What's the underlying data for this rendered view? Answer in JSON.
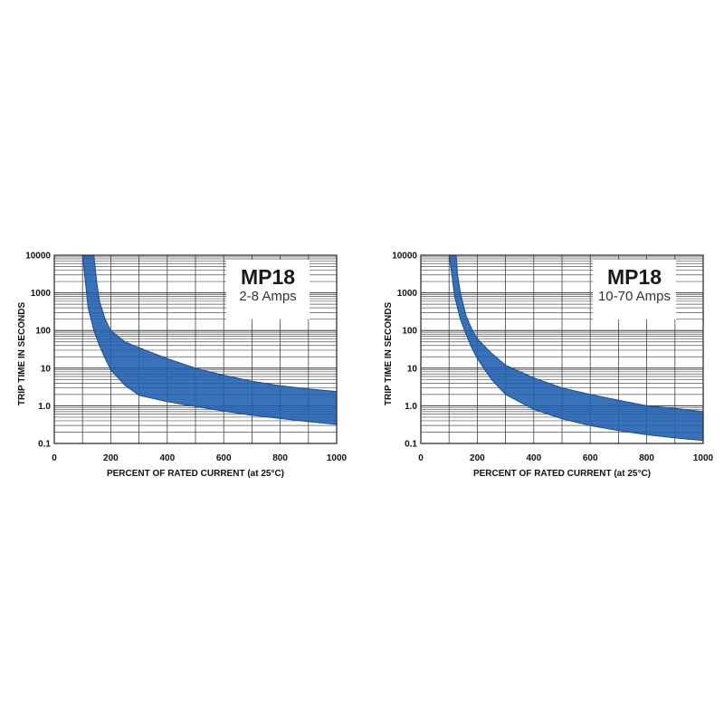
{
  "chart_data": [
    {
      "type": "area",
      "title": "MP18",
      "subtitle": "2-8 Amps",
      "xlabel": "PERCENT OF RATED CURRENT (at 25°C)",
      "ylabel": "TRIP TIME IN SECONDS",
      "xlim": [
        0,
        1000
      ],
      "ylim": [
        0.1,
        10000
      ],
      "yscale": "log",
      "grid": true,
      "x_ticks": [
        "0",
        "200",
        "400",
        "600",
        "800",
        "1000"
      ],
      "y_ticks": [
        "0.1",
        "1.0",
        "10",
        "100",
        "1000",
        "10000"
      ],
      "band_color": "#1f5fb0",
      "series": [
        {
          "x": [
            100,
            110,
            120,
            140,
            160,
            180,
            200,
            250,
            300,
            400,
            500,
            600,
            700,
            800,
            900,
            1000
          ],
          "values": [
            10000,
            2000,
            400,
            100,
            40,
            18,
            9,
            3.5,
            1.9,
            1.3,
            0.95,
            0.72,
            0.56,
            0.46,
            0.38,
            0.32
          ]
        },
        {
          "x": [
            140,
            150,
            160,
            180,
            200,
            250,
            300,
            400,
            500,
            600,
            700,
            800,
            900,
            1000
          ],
          "values": [
            10000,
            2000,
            600,
            200,
            100,
            50,
            35,
            18,
            10,
            6.5,
            4.5,
            3.4,
            2.8,
            2.4
          ]
        }
      ]
    },
    {
      "type": "area",
      "title": "MP18",
      "subtitle": "10-70 Amps",
      "xlabel": "PERCENT OF RATED CURRENT (at 25°C)",
      "ylabel": "TRIP TIME IN SECONDS",
      "xlim": [
        0,
        1000
      ],
      "ylim": [
        0.1,
        10000
      ],
      "yscale": "log",
      "grid": true,
      "x_ticks": [
        "0",
        "200",
        "400",
        "600",
        "800",
        "1000"
      ],
      "y_ticks": [
        "0.1",
        "1.0",
        "10",
        "100",
        "1000",
        "10000"
      ],
      "band_color": "#1f5fb0",
      "series": [
        {
          "x": [
            100,
            110,
            120,
            140,
            160,
            180,
            200,
            250,
            300,
            400,
            500,
            600,
            700,
            800,
            900,
            1000
          ],
          "values": [
            10000,
            3000,
            800,
            200,
            80,
            35,
            18,
            5,
            2,
            0.8,
            0.45,
            0.3,
            0.22,
            0.17,
            0.14,
            0.12
          ]
        },
        {
          "x": [
            125,
            130,
            140,
            160,
            180,
            200,
            250,
            300,
            400,
            500,
            600,
            700,
            800,
            900,
            1000
          ],
          "values": [
            10000,
            3000,
            1000,
            250,
            110,
            60,
            25,
            12,
            5.5,
            3,
            2,
            1.4,
            1.0,
            0.85,
            0.7
          ]
        }
      ]
    }
  ]
}
